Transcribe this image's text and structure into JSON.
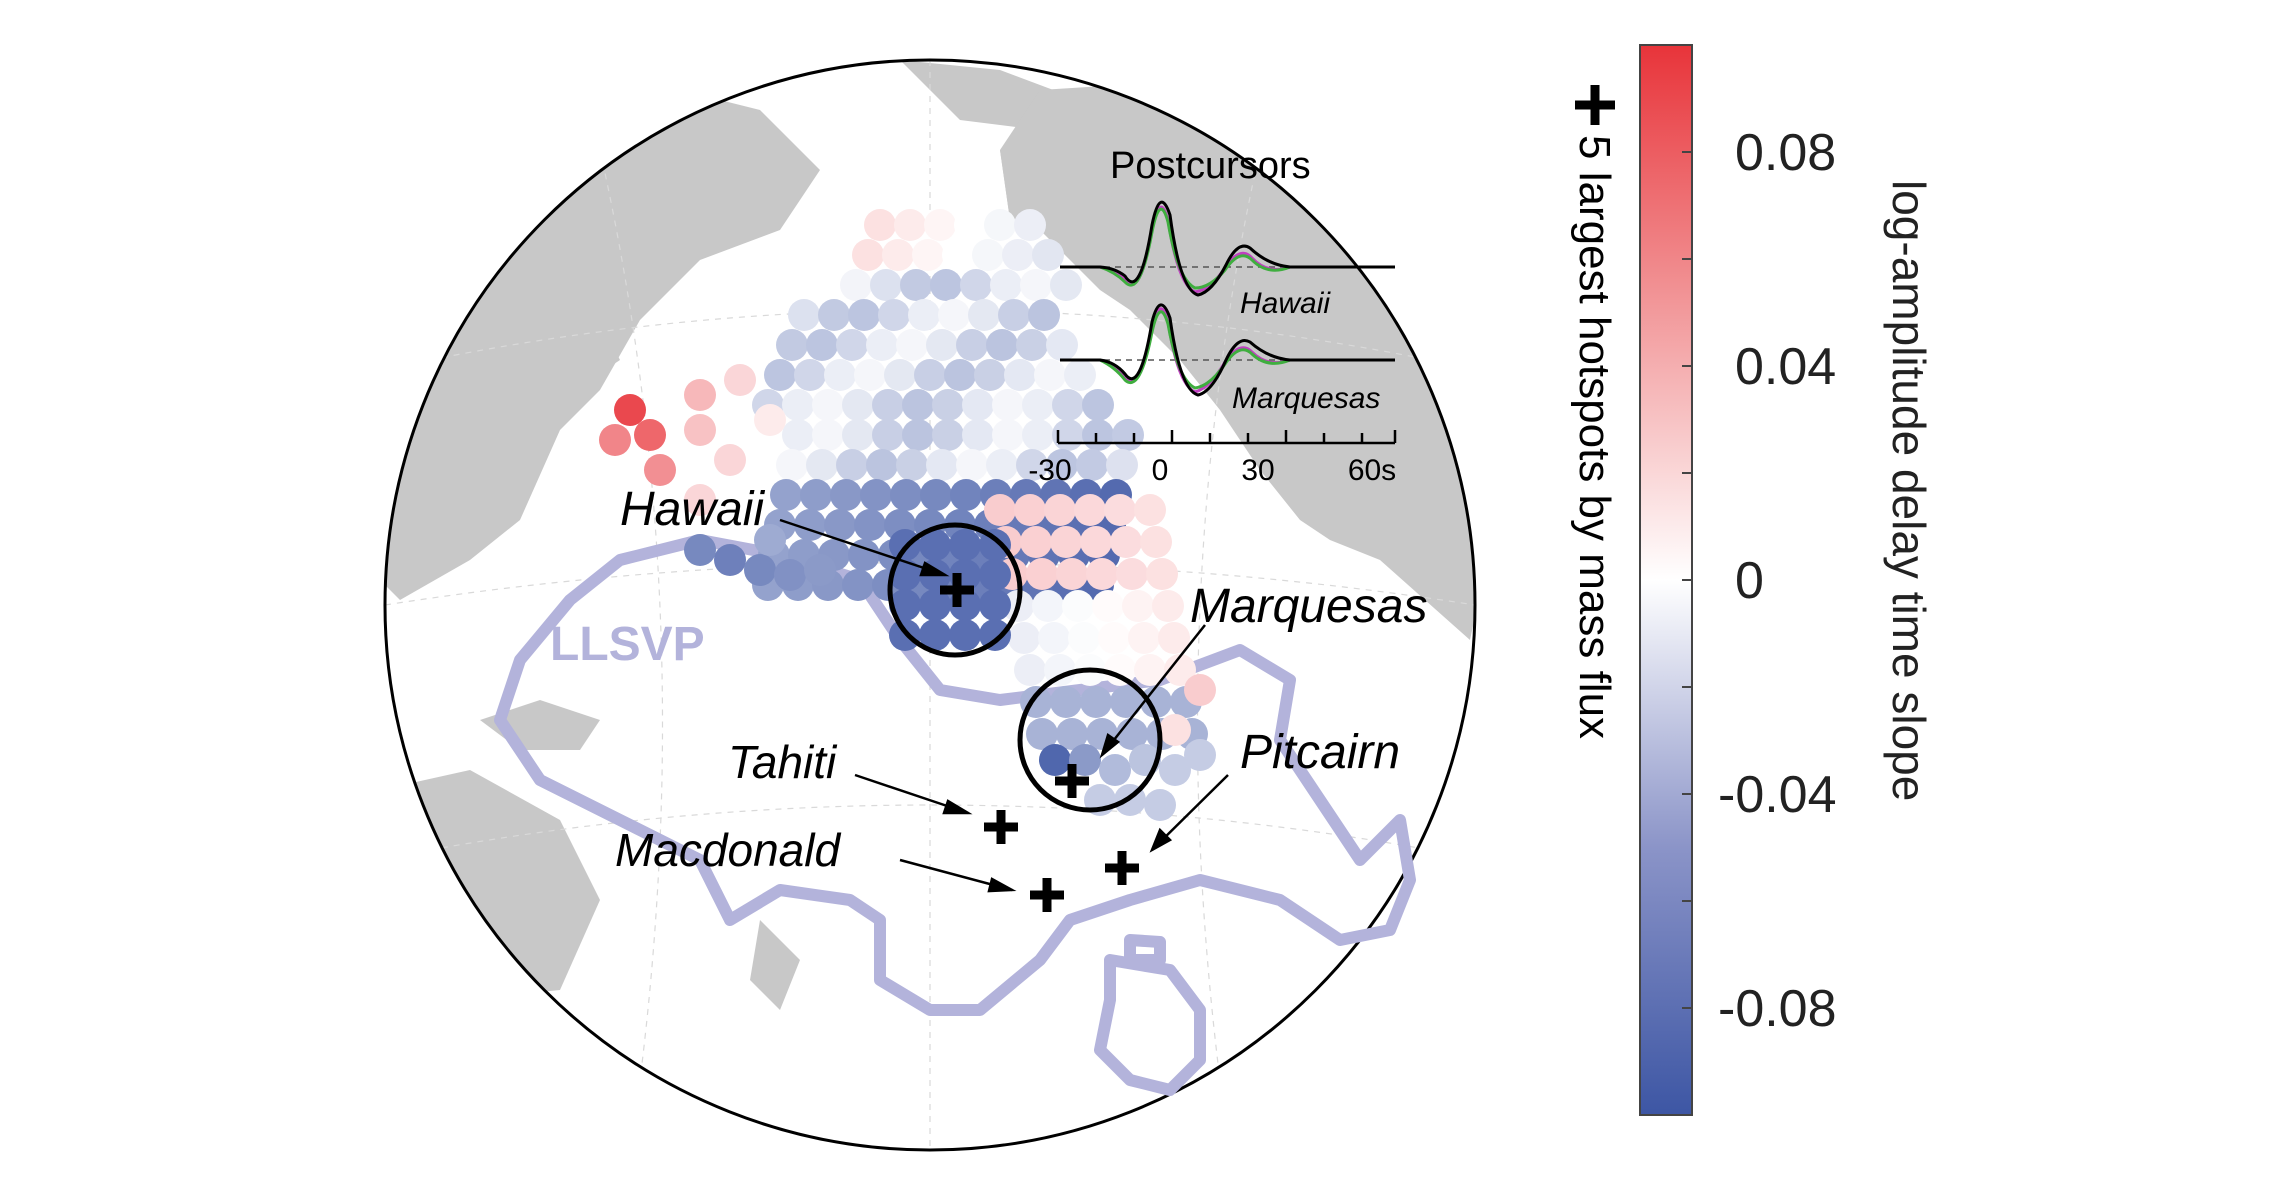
{
  "map": {
    "region_label": "LLSVP",
    "hotspot_labels": [
      "Hawaii",
      "Marquesas",
      "Tahiti",
      "Macdonald",
      "Pitcairn"
    ],
    "legend_text": "5 largest hotspots by mass flux",
    "colors": {
      "land": "#c8c8c8",
      "ocean": "#ffffff",
      "llsvp": "#b3b3db",
      "positive": "#e8343a",
      "negative": "#3d56a4",
      "neutral": "#ffffff"
    }
  },
  "colorbar": {
    "label": "log-amplitude delay time slope",
    "ticks": [
      "0.08",
      "0.04",
      "0",
      "-0.04",
      "-0.08"
    ],
    "range": [
      -0.1,
      0.1
    ]
  },
  "inset": {
    "title": "Postcursors",
    "trace_labels": [
      "Hawaii",
      "Marquesas"
    ],
    "xticks": [
      "-30",
      "0",
      "30",
      "60s"
    ],
    "colors": {
      "trace": "#000000",
      "alt1": "#c040c0",
      "alt2": "#3fae3f"
    }
  }
}
